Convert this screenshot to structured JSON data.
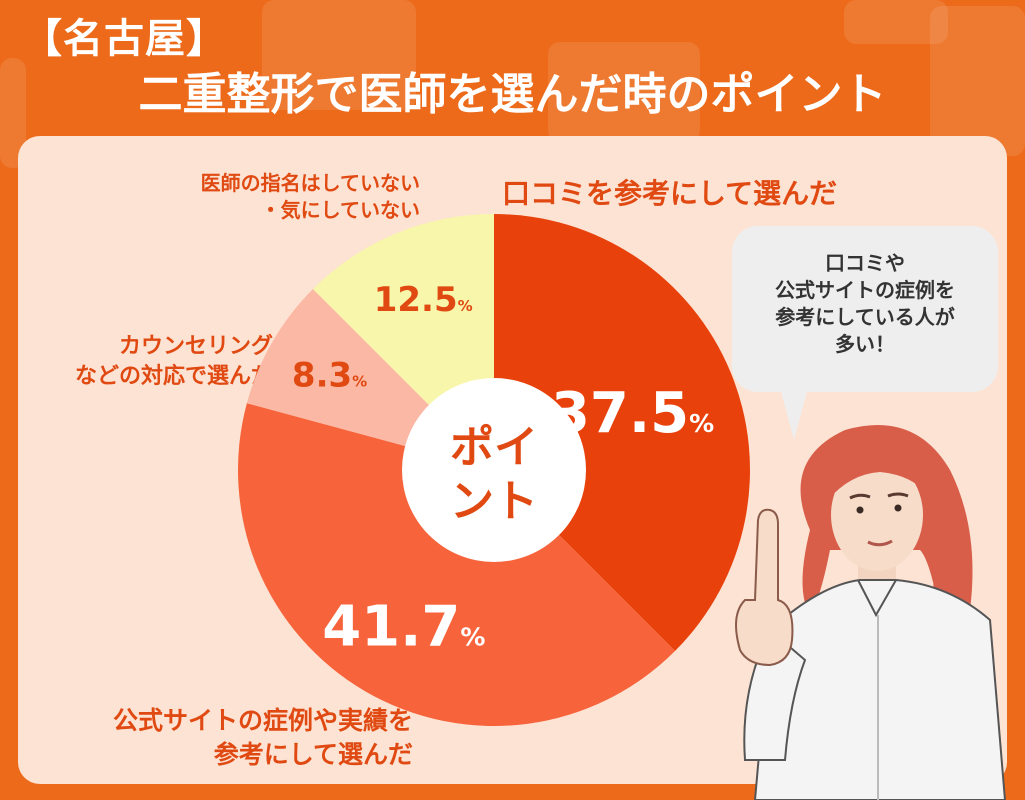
{
  "header": {
    "line1": "【名古屋】",
    "line2": "二重整形で医師を選んだ時のポイント"
  },
  "colors": {
    "background": "#ec6a1a",
    "panel": "#fde3d3",
    "slice_reviews": "#e8410b",
    "slice_official": "#f7633a",
    "slice_counseling": "#fbb8a4",
    "slice_none": "#f8f6aa",
    "label_text": "#e04a12"
  },
  "center_label": [
    "ポイ",
    "ント"
  ],
  "bubble": {
    "lines": [
      "口コミや",
      "公式サイトの症例を",
      "参考にしている人が",
      "多い！"
    ]
  },
  "chart_data": {
    "type": "pie",
    "title": "二重整形で医師を選んだ時のポイント",
    "unit": "%",
    "donut": true,
    "start_angle": "12 o'clock",
    "direction": "clockwise",
    "slices": [
      {
        "label": "口コミを参考にして選んだ",
        "value": 37.5,
        "display": "37.5",
        "color": "#e8410b",
        "text_color": "#ffffff"
      },
      {
        "label": "公式サイトの症例や実績を参考にして選んだ",
        "value": 41.7,
        "display": "41.7",
        "color": "#f7633a",
        "text_color": "#ffffff"
      },
      {
        "label": "カウンセリングなどの対応で選んだ",
        "value": 8.3,
        "display": "8.3",
        "color": "#fbb8a4",
        "text_color": "#e04a12"
      },
      {
        "label": "医師の指名はしていない・気にしていない",
        "value": 12.5,
        "display": "12.5",
        "color": "#f8f6aa",
        "text_color": "#e04a12"
      }
    ],
    "category_labels": {
      "reviews": [
        "口コミを参考にして選んだ"
      ],
      "official": [
        "公式サイトの症例や実績を",
        "参考にして選んだ"
      ],
      "counseling": [
        "カウンセリング",
        "などの対応で選んだ"
      ],
      "none": [
        "医師の指名はしていない",
        "・気にしていない"
      ]
    }
  }
}
